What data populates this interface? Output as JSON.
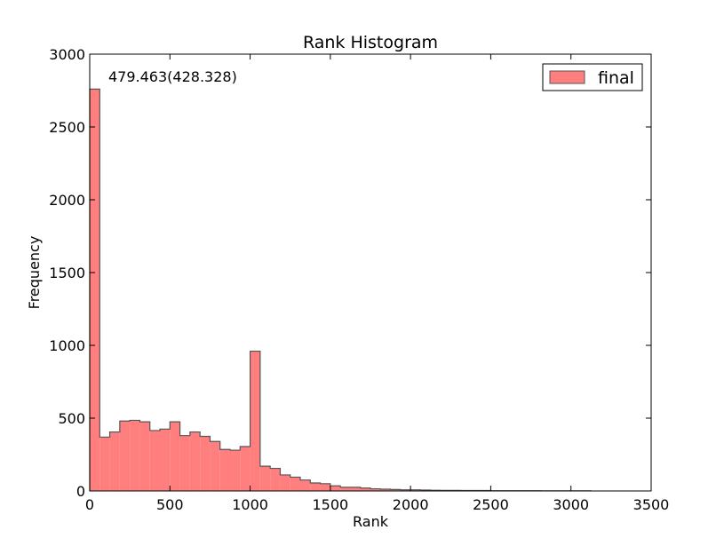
{
  "chart_data": {
    "type": "bar",
    "title": "Rank Histogram",
    "xlabel": "Rank",
    "ylabel": "Frequency",
    "xlim": [
      0,
      3500
    ],
    "ylim": [
      0,
      3000
    ],
    "xticks": [
      0,
      500,
      1000,
      1500,
      2000,
      2500,
      3000,
      3500
    ],
    "yticks": [
      0,
      500,
      1000,
      1500,
      2000,
      2500,
      3000
    ],
    "annotation": "479.463(428.328)",
    "legend": {
      "position": "top-right",
      "entries": [
        "final"
      ]
    },
    "grid": false,
    "series": [
      {
        "name": "final",
        "color": "#ff7f7f",
        "edge_color": "#555555",
        "bin_width": 62.5,
        "bin_starts": [
          0,
          62.5,
          125,
          187.5,
          250,
          312.5,
          375,
          437.5,
          500,
          562.5,
          625,
          687.5,
          750,
          812.5,
          875,
          937.5,
          1000,
          1062.5,
          1125,
          1187.5,
          1250,
          1312.5,
          1375,
          1437.5,
          1500,
          1562.5,
          1625,
          1687.5,
          1750,
          1812.5,
          1875,
          1937.5,
          2000,
          2062.5,
          2125,
          2187.5,
          2250,
          2312.5,
          2375,
          2437.5,
          2500,
          2562.5,
          2625,
          2687.5,
          2750,
          2812.5,
          2875,
          2937.5,
          3000,
          3062.5
        ],
        "values": [
          2760,
          370,
          405,
          480,
          485,
          475,
          415,
          425,
          475,
          380,
          405,
          375,
          340,
          285,
          280,
          305,
          960,
          170,
          155,
          110,
          95,
          75,
          55,
          50,
          35,
          25,
          25,
          20,
          15,
          12,
          10,
          8,
          8,
          6,
          5,
          4,
          4,
          3,
          3,
          3,
          2,
          2,
          2,
          2,
          2,
          1,
          1,
          1,
          1,
          1
        ]
      }
    ]
  }
}
